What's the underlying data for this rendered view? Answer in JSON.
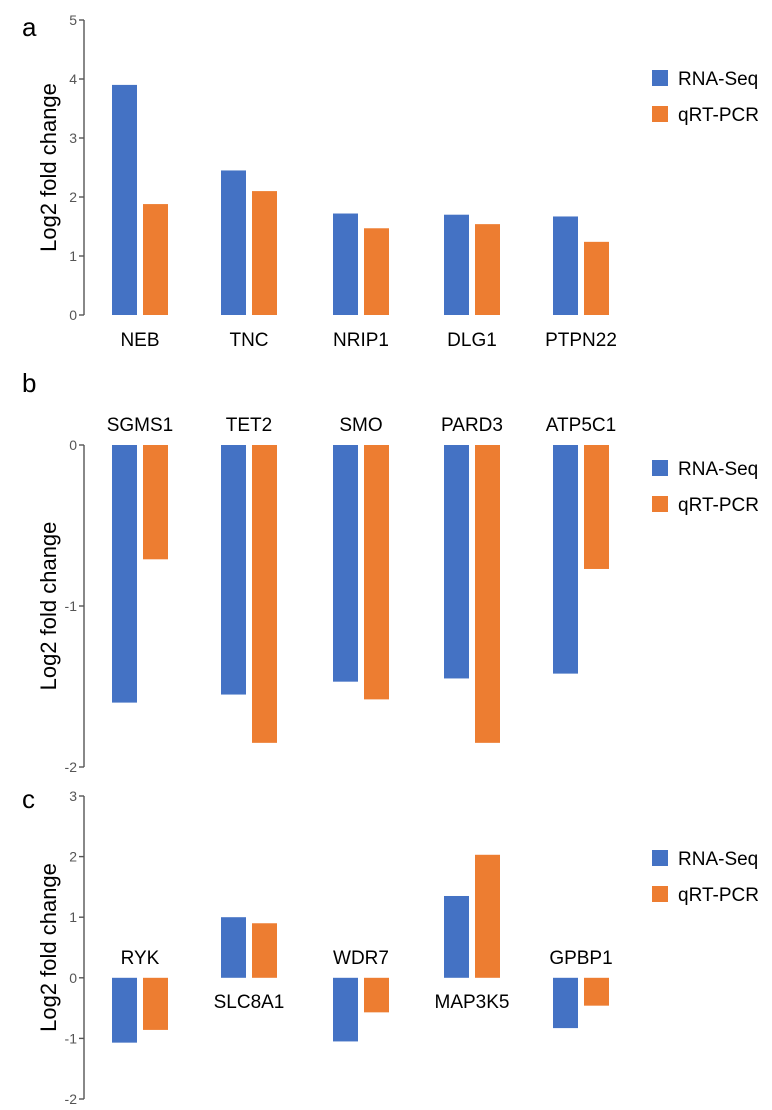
{
  "legend": {
    "series": [
      "RNA-Seq",
      "qRT-PCR"
    ]
  },
  "colors": {
    "RNA-Seq": "#4472C4",
    "qRT-PCR": "#ED7D31"
  },
  "chart_data": [
    {
      "type": "bar",
      "panel": "a",
      "ylabel": "Log2 fold change",
      "ylim": [
        0,
        5
      ],
      "yticks": [
        0,
        1,
        2,
        3,
        4,
        5
      ],
      "categories": [
        "NEB",
        "TNC",
        "NRIP1",
        "DLG1",
        "PTPN22"
      ],
      "label_position": "below",
      "series": [
        {
          "name": "RNA-Seq",
          "values": [
            3.9,
            2.45,
            1.72,
            1.7,
            1.67
          ]
        },
        {
          "name": "qRT-PCR",
          "values": [
            1.88,
            2.1,
            1.47,
            1.54,
            1.24
          ]
        }
      ]
    },
    {
      "type": "bar",
      "panel": "b",
      "ylabel": "Log2 fold change",
      "ylim": [
        -2,
        0
      ],
      "yticks": [
        0,
        -1,
        -2
      ],
      "categories": [
        "SGMS1",
        "TET2",
        "SMO",
        "PARD3",
        "ATP5C1"
      ],
      "label_position": "above",
      "series": [
        {
          "name": "RNA-Seq",
          "values": [
            -1.6,
            -1.55,
            -1.47,
            -1.45,
            -1.42
          ]
        },
        {
          "name": "qRT-PCR",
          "values": [
            -0.71,
            -1.85,
            -1.58,
            -1.85,
            -0.77
          ]
        }
      ]
    },
    {
      "type": "bar",
      "panel": "c",
      "ylabel": "Log2 fold change",
      "ylim": [
        -2,
        3
      ],
      "yticks": [
        3,
        2,
        1,
        0,
        -1,
        -2
      ],
      "categories": [
        "RYK",
        "SLC8A1",
        "WDR7",
        "MAP3K5",
        "GPBP1"
      ],
      "label_position": "alternate",
      "series": [
        {
          "name": "RNA-Seq",
          "values": [
            -1.07,
            1.0,
            -1.05,
            1.35,
            -0.83
          ]
        },
        {
          "name": "qRT-PCR",
          "values": [
            -0.86,
            0.9,
            -0.57,
            2.03,
            -0.46
          ]
        }
      ]
    }
  ]
}
